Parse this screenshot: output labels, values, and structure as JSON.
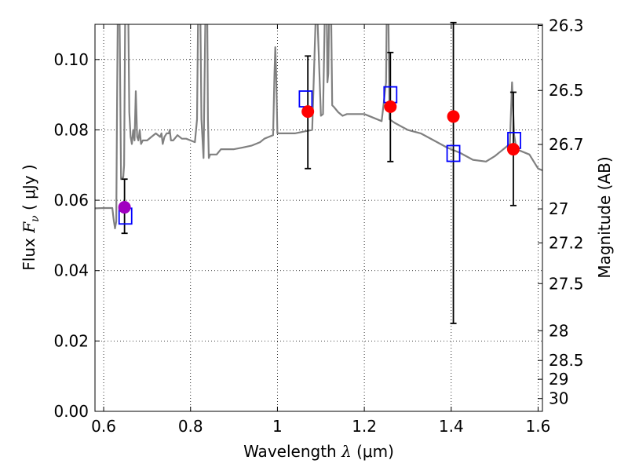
{
  "chart_data": {
    "type": "scatter",
    "title": "",
    "xlabel": {
      "prefix": "Wavelength  ",
      "symbol": "λ",
      "unit": " (μm)"
    },
    "ylabel": {
      "prefix": "Flux  ",
      "symbol": "F",
      "subscript": "ν",
      "unit": "  ( μJy )"
    },
    "y2label": "Magnitude (AB)",
    "xlim": [
      0.58,
      1.61
    ],
    "ylim": [
      0.0,
      0.11
    ],
    "grid": true,
    "x_ticks": [
      0.6,
      0.8,
      1.0,
      1.2,
      1.4,
      1.6
    ],
    "x_tick_labels": [
      "0.6",
      "0.8",
      "1",
      "1.2",
      "1.4",
      "1.6"
    ],
    "y_ticks": [
      0.0,
      0.02,
      0.04,
      0.06,
      0.08,
      0.1
    ],
    "y_tick_labels": [
      "0.00",
      "0.02",
      "0.04",
      "0.06",
      "0.08",
      "0.10"
    ],
    "mag_ticks": [
      26.3,
      26.5,
      26.7,
      27,
      27.2,
      27.5,
      28,
      28.5,
      29,
      30
    ],
    "mag_tick_labels": [
      "26.3",
      "26.5",
      "26.7",
      "27",
      "27.2",
      "27.5",
      "28",
      "28.5",
      "29",
      "30"
    ],
    "colors": {
      "model": "#808080",
      "box": "#0000ff",
      "point": "#ff0000",
      "point_first": "#a000c0",
      "errorbar": "#000000"
    },
    "series": [
      {
        "style": "model-line",
        "x": [
          0.58,
          0.6,
          0.615,
          0.62,
          0.623,
          0.626,
          0.629,
          0.631,
          0.633,
          0.636,
          0.64,
          0.643,
          0.645,
          0.647,
          0.65,
          0.653,
          0.656,
          0.659,
          0.662,
          0.665,
          0.668,
          0.671,
          0.674,
          0.677,
          0.68,
          0.683,
          0.686,
          0.69,
          0.7,
          0.71,
          0.72,
          0.73,
          0.733,
          0.736,
          0.74,
          0.745,
          0.75,
          0.752,
          0.755,
          0.76,
          0.77,
          0.78,
          0.79,
          0.8,
          0.81,
          0.815,
          0.818,
          0.82,
          0.822,
          0.825,
          0.83,
          0.835,
          0.838,
          0.84,
          0.842,
          0.845,
          0.85,
          0.86,
          0.87,
          0.88,
          0.9,
          0.92,
          0.94,
          0.95,
          0.96,
          0.97,
          0.98,
          0.99,
          0.993,
          0.995,
          0.997,
          1.0,
          1.02,
          1.04,
          1.06,
          1.08,
          1.09,
          1.1,
          1.105,
          1.11,
          1.113,
          1.115,
          1.117,
          1.12,
          1.123,
          1.126,
          1.13,
          1.14,
          1.15,
          1.16,
          1.18,
          1.2,
          1.22,
          1.24,
          1.25,
          1.252,
          1.255,
          1.258,
          1.27,
          1.3,
          1.33,
          1.36,
          1.39,
          1.4,
          1.42,
          1.45,
          1.48,
          1.5,
          1.52,
          1.535,
          1.54,
          1.545,
          1.55,
          1.56,
          1.58,
          1.6,
          1.61
        ],
        "y": [
          0.0577,
          0.0578,
          0.0578,
          0.0578,
          0.0545,
          0.052,
          0.054,
          0.09,
          0.12,
          0.12,
          0.066,
          0.0665,
          0.0665,
          0.07,
          0.12,
          0.12,
          0.12,
          0.085,
          0.078,
          0.076,
          0.08,
          0.077,
          0.091,
          0.078,
          0.077,
          0.08,
          0.076,
          0.077,
          0.077,
          0.078,
          0.079,
          0.078,
          0.079,
          0.076,
          0.078,
          0.079,
          0.079,
          0.08,
          0.077,
          0.077,
          0.0785,
          0.0775,
          0.0775,
          0.077,
          0.0765,
          0.083,
          0.12,
          0.12,
          0.12,
          0.083,
          0.072,
          0.12,
          0.12,
          0.083,
          0.072,
          0.073,
          0.073,
          0.073,
          0.0745,
          0.0745,
          0.0745,
          0.075,
          0.0755,
          0.076,
          0.0765,
          0.0775,
          0.078,
          0.0785,
          0.0955,
          0.1035,
          0.096,
          0.079,
          0.079,
          0.079,
          0.0795,
          0.08,
          0.1195,
          0.084,
          0.0845,
          0.1195,
          0.1195,
          0.0935,
          0.096,
          0.1195,
          0.1195,
          0.087,
          0.0865,
          0.085,
          0.084,
          0.0845,
          0.0845,
          0.0845,
          0.0835,
          0.0825,
          0.0935,
          0.1195,
          0.1195,
          0.083,
          0.082,
          0.08,
          0.079,
          0.077,
          0.075,
          0.0745,
          0.0735,
          0.0715,
          0.071,
          0.0725,
          0.0745,
          0.076,
          0.0935,
          0.0785,
          0.0745,
          0.074,
          0.073,
          0.069,
          0.0685
        ]
      },
      {
        "style": "model-boxes",
        "x": [
          0.65,
          1.065,
          1.26,
          1.405,
          1.545
        ],
        "y": [
          0.0555,
          0.0888,
          0.09,
          0.0733,
          0.077
        ]
      },
      {
        "style": "observed-points",
        "x": [
          0.648,
          1.07,
          1.26,
          1.405,
          1.543
        ],
        "y": [
          0.058,
          0.0852,
          0.0866,
          0.0838,
          0.0745
        ],
        "yerr_low": [
          0.0506,
          0.069,
          0.071,
          0.025,
          0.0585
        ],
        "yerr_high": [
          0.066,
          0.101,
          0.102,
          0.1105,
          0.0907
        ]
      }
    ]
  }
}
